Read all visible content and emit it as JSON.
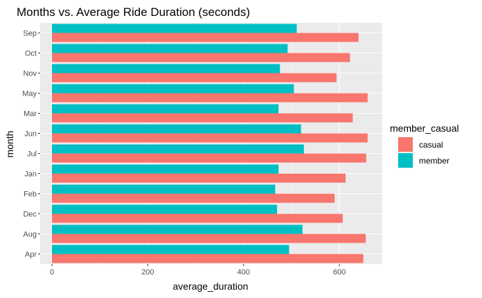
{
  "chart_data": {
    "type": "bar",
    "orientation": "horizontal",
    "title": "Months vs. Average Ride Duration (seconds)",
    "xlabel": "average_duration",
    "ylabel": "month",
    "categories": [
      "Sep",
      "Oct",
      "Nov",
      "May",
      "Mar",
      "Jun",
      "Jul",
      "Jan",
      "Feb",
      "Dec",
      "Aug",
      "Apr"
    ],
    "series": [
      {
        "name": "casual",
        "color": "#F8766D",
        "values": [
          640,
          622,
          594,
          659,
          628,
          659,
          656,
          613,
          590,
          607,
          655,
          650
        ]
      },
      {
        "name": "member",
        "color": "#00BFC4",
        "values": [
          511,
          492,
          476,
          505,
          473,
          520,
          526,
          473,
          466,
          470,
          523,
          495
        ]
      }
    ],
    "xticks": [
      0,
      200,
      400,
      600
    ],
    "xlim": [
      0,
      665
    ],
    "legend_title": "member_casual",
    "legend_position": "right",
    "grid": true,
    "panel_background": "#EBEBEB"
  }
}
